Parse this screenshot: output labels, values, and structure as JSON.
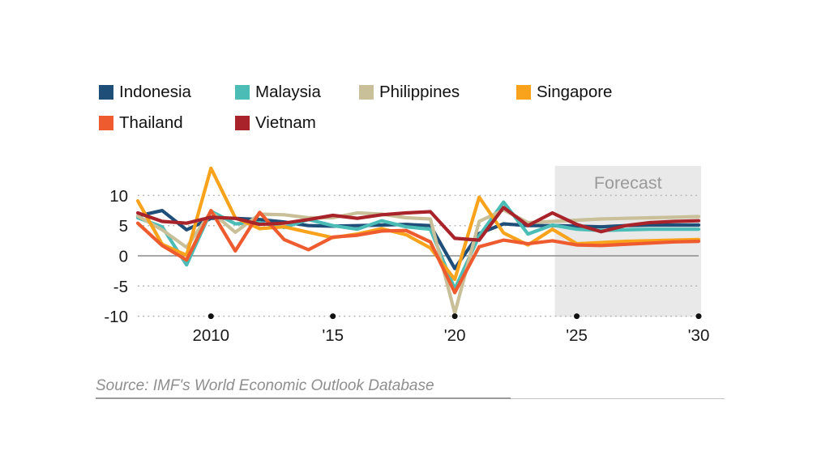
{
  "page": {
    "background": "#ffffff"
  },
  "forecast_label": "Forecast",
  "chart_data": {
    "type": "line",
    "title": "",
    "xlabel": "",
    "ylabel": "",
    "x_years": [
      2007,
      2008,
      2009,
      2010,
      2011,
      2012,
      2013,
      2014,
      2015,
      2016,
      2017,
      2018,
      2019,
      2020,
      2021,
      2022,
      2023,
      2024,
      2025,
      2026,
      2027,
      2028,
      2029,
      2030
    ],
    "x_ticks": [
      {
        "year": 2010,
        "label": "2010"
      },
      {
        "year": 2015,
        "label": "'15"
      },
      {
        "year": 2020,
        "label": "'20"
      },
      {
        "year": 2025,
        "label": "'25"
      },
      {
        "year": 2030,
        "label": "'30"
      }
    ],
    "y_ticks": [
      {
        "value": 10,
        "label": "10"
      },
      {
        "value": 5,
        "label": "5"
      },
      {
        "value": 0,
        "label": "0"
      },
      {
        "value": -5,
        "label": "-5"
      },
      {
        "value": -10,
        "label": "-10"
      }
    ],
    "ylim": [
      -10,
      14.9
    ],
    "xlim": [
      2007,
      2030
    ],
    "grid": "dotted horizontal lines at 10, 5, -5, -10; solid gray zero line; black dots on baseline at labeled years",
    "legend_position": "top-left, two rows",
    "forecast_region": {
      "label": "Forecast",
      "start_year": 2024.1,
      "end_year": 2030.1,
      "fill": "#e9e9e9",
      "label_color": "#9a9a9a"
    },
    "series": [
      {
        "name": "Indonesia",
        "color": "#1f4e79",
        "values": [
          6.6,
          7.5,
          4.3,
          6.2,
          6.2,
          6.0,
          5.6,
          5.0,
          4.9,
          5.0,
          5.1,
          5.2,
          5.0,
          -2.1,
          3.7,
          5.3,
          5.0,
          5.0,
          4.9,
          4.8,
          5.0,
          5.1,
          5.1,
          5.1
        ]
      },
      {
        "name": "Malaysia",
        "color": "#4cbcb6",
        "values": [
          6.3,
          4.8,
          -1.5,
          7.4,
          5.3,
          5.5,
          4.7,
          6.0,
          5.0,
          4.4,
          5.8,
          4.8,
          4.4,
          -5.5,
          3.3,
          8.9,
          3.6,
          5.1,
          4.4,
          4.2,
          4.3,
          4.4,
          4.4,
          4.4
        ]
      },
      {
        "name": "Philippines",
        "color": "#c9bf98",
        "values": [
          6.6,
          4.3,
          1.4,
          7.3,
          3.9,
          6.9,
          6.8,
          6.3,
          6.3,
          7.1,
          6.9,
          6.3,
          6.1,
          -9.5,
          5.7,
          7.6,
          5.5,
          5.7,
          5.9,
          6.1,
          6.2,
          6.3,
          6.4,
          6.5
        ]
      },
      {
        "name": "Singapore",
        "color": "#f9a21c",
        "values": [
          9.1,
          1.9,
          0.1,
          14.5,
          6.3,
          4.5,
          4.8,
          3.9,
          3.0,
          3.6,
          4.5,
          3.5,
          1.3,
          -3.9,
          9.7,
          3.8,
          1.8,
          4.4,
          2.0,
          2.2,
          2.4,
          2.5,
          2.6,
          2.7
        ]
      },
      {
        "name": "Thailand",
        "color": "#ee5b2e",
        "values": [
          5.4,
          1.7,
          -0.7,
          7.5,
          0.8,
          7.2,
          2.7,
          1.0,
          3.1,
          3.4,
          4.1,
          4.2,
          2.3,
          -6.1,
          1.5,
          2.6,
          2.0,
          2.5,
          1.8,
          1.7,
          1.9,
          2.1,
          2.3,
          2.4
        ]
      },
      {
        "name": "Vietnam",
        "color": "#a8232a",
        "values": [
          7.1,
          5.7,
          5.4,
          6.4,
          6.2,
          5.2,
          5.4,
          6.0,
          6.7,
          6.2,
          6.8,
          7.1,
          7.3,
          2.9,
          2.6,
          8.0,
          5.0,
          7.1,
          5.2,
          4.0,
          5.0,
          5.5,
          5.7,
          5.8
        ]
      }
    ],
    "axis_colors": {
      "tick_label": "#1a1a1a",
      "grid_dotted": "#b3b3b3",
      "zero_line": "#8a8a8a",
      "tick_dot": "#111111"
    },
    "source": "Source: IMF's World Economic Outlook Database"
  }
}
